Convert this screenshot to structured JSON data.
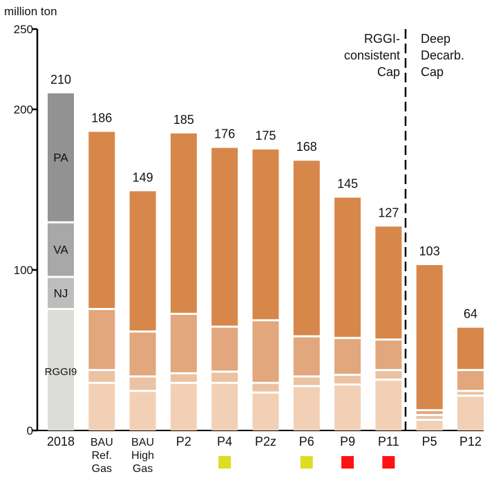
{
  "chart_data": {
    "type": "bar",
    "stacked": true,
    "ylabel": "million ton",
    "ylim": [
      0,
      250
    ],
    "yticks": [
      "0",
      "100",
      "200",
      "250"
    ],
    "grid": false,
    "colors": {
      "base_gray": [
        "#dcdcd8",
        "#bdbdbd",
        "#a8a8a8",
        "#929292"
      ],
      "scenario": [
        "#f2d0b6",
        "#ebc2a2",
        "#e2a77d",
        "#d8874a"
      ]
    },
    "bars": [
      {
        "category": "2018",
        "lines": [
          "2018"
        ],
        "total_label": "210",
        "segments": [
          {
            "name": "RGGI9",
            "value": 75,
            "color": "#dcdcd8"
          },
          {
            "name": "NJ",
            "value": 20,
            "color": "#bdbdbd"
          },
          {
            "name": "VA",
            "value": 34,
            "color": "#a8a8a8"
          },
          {
            "name": "PA",
            "value": 81,
            "color": "#929292"
          }
        ]
      },
      {
        "category": "BAU Ref. Gas",
        "lines": [
          "BAU",
          "Ref.",
          "Gas"
        ],
        "total_label": "186",
        "segments": [
          {
            "value": 29
          },
          {
            "value": 8
          },
          {
            "value": 38
          },
          {
            "value": 111
          }
        ]
      },
      {
        "category": "BAU High Gas",
        "lines": [
          "BAU",
          "High",
          "Gas"
        ],
        "total_label": "149",
        "segments": [
          {
            "value": 24
          },
          {
            "value": 9
          },
          {
            "value": 28
          },
          {
            "value": 88
          }
        ]
      },
      {
        "category": "P2",
        "lines": [
          "P2"
        ],
        "total_label": "185",
        "segments": [
          {
            "value": 29
          },
          {
            "value": 6
          },
          {
            "value": 37
          },
          {
            "value": 113
          }
        ]
      },
      {
        "category": "P4",
        "lines": [
          "P4"
        ],
        "total_label": "176",
        "marker": "#dddd22",
        "segments": [
          {
            "value": 29
          },
          {
            "value": 7
          },
          {
            "value": 28
          },
          {
            "value": 112
          }
        ]
      },
      {
        "category": "P2z",
        "lines": [
          "P2z"
        ],
        "total_label": "175",
        "segments": [
          {
            "value": 23
          },
          {
            "value": 6
          },
          {
            "value": 39
          },
          {
            "value": 107
          }
        ]
      },
      {
        "category": "P6",
        "lines": [
          "P6"
        ],
        "total_label": "168",
        "marker": "#dddd22",
        "segments": [
          {
            "value": 27
          },
          {
            "value": 6
          },
          {
            "value": 25
          },
          {
            "value": 110
          }
        ]
      },
      {
        "category": "P9",
        "lines": [
          "P9"
        ],
        "total_label": "145",
        "marker": "#ff1111",
        "segments": [
          {
            "value": 28
          },
          {
            "value": 6
          },
          {
            "value": 23
          },
          {
            "value": 88
          }
        ]
      },
      {
        "category": "P11",
        "lines": [
          "P11"
        ],
        "total_label": "127",
        "marker": "#ff1111",
        "segments": [
          {
            "value": 31
          },
          {
            "value": 6
          },
          {
            "value": 19
          },
          {
            "value": 71
          }
        ]
      },
      {
        "category": "P5",
        "lines": [
          "P5"
        ],
        "total_label": "103",
        "segments": [
          {
            "value": 6
          },
          {
            "value": 3
          },
          {
            "value": 3
          },
          {
            "value": 91
          }
        ]
      },
      {
        "category": "P12",
        "lines": [
          "P12"
        ],
        "total_label": "64",
        "segments": [
          {
            "value": 21
          },
          {
            "value": 3
          },
          {
            "value": 13
          },
          {
            "value": 27
          }
        ]
      }
    ],
    "annotations": [
      {
        "lines": [
          "RGGI-",
          "consistent",
          "Cap"
        ],
        "anchor": "end"
      },
      {
        "lines": [
          "Deep",
          "Decarb.",
          "Cap"
        ],
        "anchor": "start"
      }
    ]
  }
}
